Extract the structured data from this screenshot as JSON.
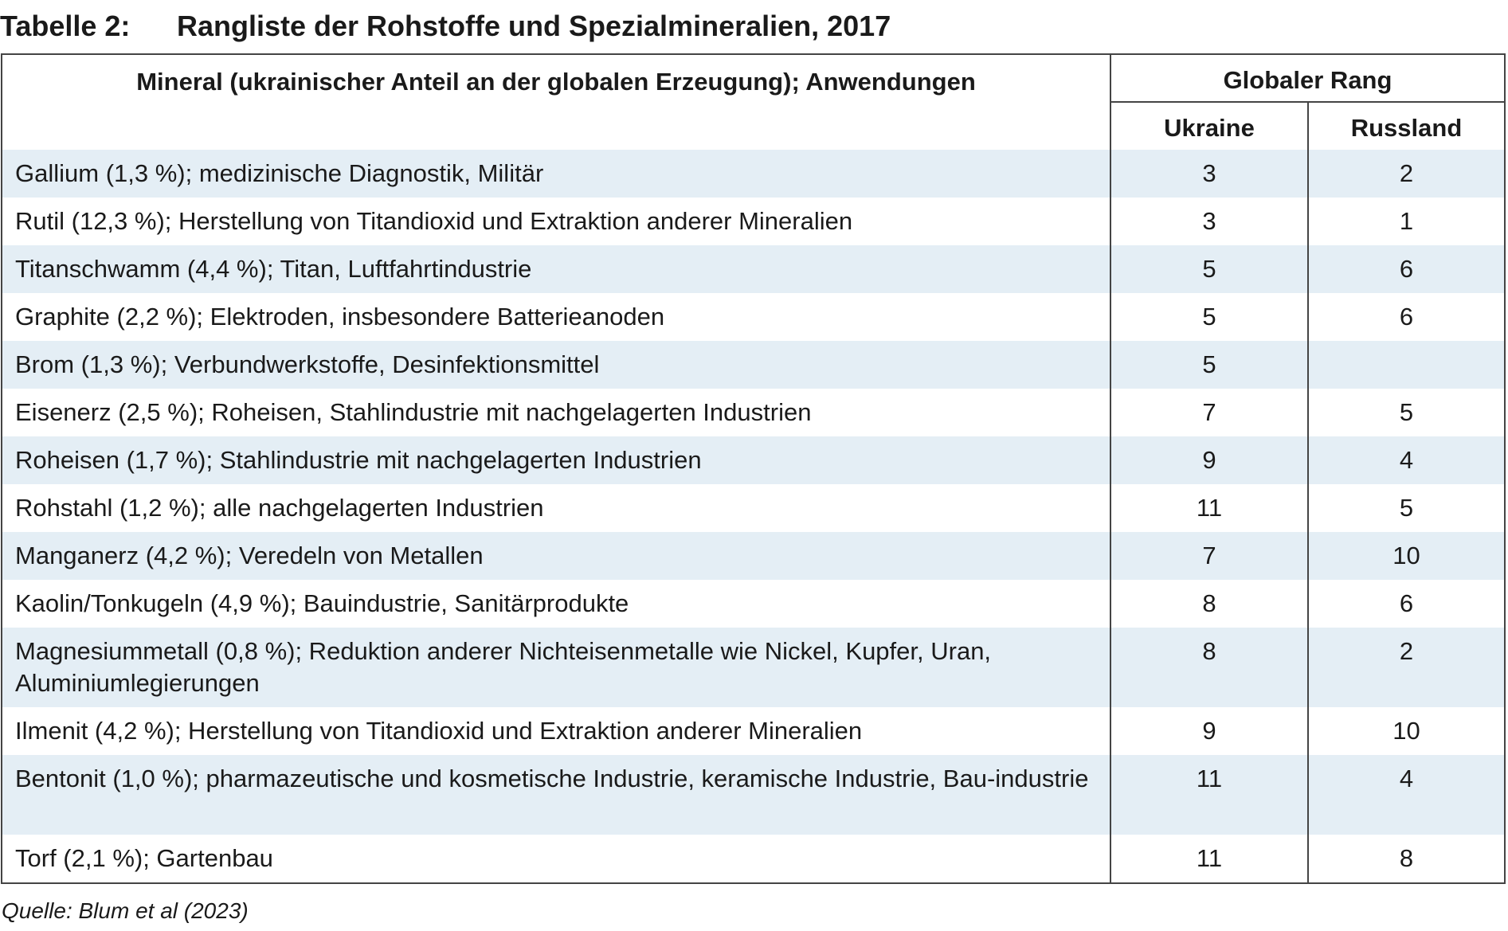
{
  "title": {
    "label": "Tabelle 2:",
    "text": "Rangliste der Rohstoffe und Spezialmineralien, 2017"
  },
  "table": {
    "header_mineral": "Mineral (ukrainischer Anteil an der globalen Erzeugung); Anwendungen",
    "header_rank": "Globaler Rang",
    "header_ukraine": "Ukraine",
    "header_russia": "Russland",
    "rows": [
      {
        "mineral": "Gallium (1,3 %); medizinische Diagnostik, Militär",
        "ukraine": "3",
        "russia": "2"
      },
      {
        "mineral": "Rutil (12,3 %); Herstellung von Titandioxid und Extraktion anderer Mineralien",
        "ukraine": "3",
        "russia": "1"
      },
      {
        "mineral": "Titanschwamm (4,4 %); Titan, Luftfahrtindustrie",
        "ukraine": "5",
        "russia": "6"
      },
      {
        "mineral": "Graphite (2,2 %); Elektroden, insbesondere Batterieanoden",
        "ukraine": "5",
        "russia": "6"
      },
      {
        "mineral": "Brom (1,3 %); Verbundwerkstoffe, Desinfektionsmittel",
        "ukraine": "5",
        "russia": ""
      },
      {
        "mineral": "Eisenerz (2,5 %); Roheisen, Stahlindustrie mit nachgelagerten Industrien",
        "ukraine": "7",
        "russia": "5"
      },
      {
        "mineral": "Roheisen (1,7 %); Stahlindustrie mit nachgelagerten Industrien",
        "ukraine": "9",
        "russia": "4"
      },
      {
        "mineral": "Rohstahl (1,2 %); alle nachgelagerten Industrien",
        "ukraine": "11",
        "russia": "5"
      },
      {
        "mineral": "Manganerz (4,2 %); Veredeln von Metallen",
        "ukraine": "7",
        "russia": "10"
      },
      {
        "mineral": "Kaolin/Tonkugeln (4,9 %); Bauindustrie, Sanitärprodukte",
        "ukraine": "8",
        "russia": "6"
      },
      {
        "mineral": "Magnesiummetall (0,8 %); Reduktion anderer Nichteisenmetalle wie Nickel, Kupfer, Uran, Aluminiumlegierungen",
        "ukraine": "8",
        "russia": "2"
      },
      {
        "mineral": "Ilmenit (4,2 %); Herstellung von Titandioxid und Extraktion anderer Mineralien",
        "ukraine": "9",
        "russia": "10"
      },
      {
        "mineral": "Bentonit (1,0 %); pharmazeutische und kosmetische Industrie, keramische Industrie, Bau-industrie",
        "ukraine": "11",
        "russia": "4"
      },
      {
        "mineral": "Torf (2,1 %); Gartenbau",
        "ukraine": "11",
        "russia": "8"
      }
    ]
  },
  "source": "Quelle: Blum et al (2023)",
  "colors": {
    "row_shade": "#e4eef5",
    "border": "#444444",
    "text": "#1a1a1a"
  }
}
